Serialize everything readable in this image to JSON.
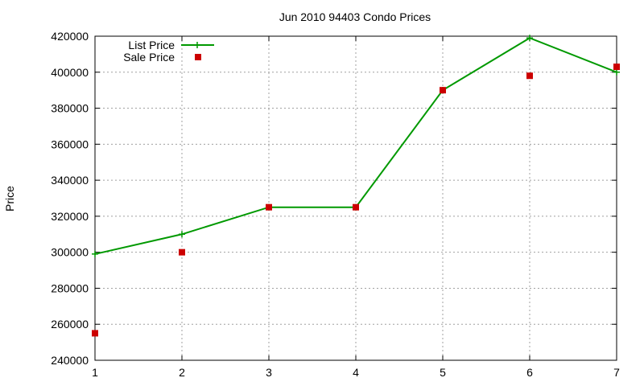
{
  "chart_data": {
    "type": "line",
    "title": "Jun 2010 94403 Condo Prices",
    "xlabel": "",
    "ylabel": "Price",
    "x": [
      1,
      2,
      3,
      4,
      5,
      6,
      7
    ],
    "xlim": [
      1,
      7
    ],
    "ylim": [
      240000,
      420000
    ],
    "x_ticks": [
      1,
      2,
      3,
      4,
      5,
      6,
      7
    ],
    "y_ticks": [
      240000,
      260000,
      280000,
      300000,
      320000,
      340000,
      360000,
      380000,
      400000,
      420000
    ],
    "grid": true,
    "legend_position": "top-left",
    "series": [
      {
        "name": "List Price",
        "style": "line-with-plus-markers",
        "color": "#009900",
        "values": [
          299000,
          310000,
          325000,
          325000,
          390000,
          419000,
          400000
        ]
      },
      {
        "name": "Sale Price",
        "style": "square-markers",
        "color": "#cc0000",
        "values": [
          255000,
          300000,
          325000,
          325000,
          390000,
          398000,
          403000
        ]
      }
    ]
  }
}
